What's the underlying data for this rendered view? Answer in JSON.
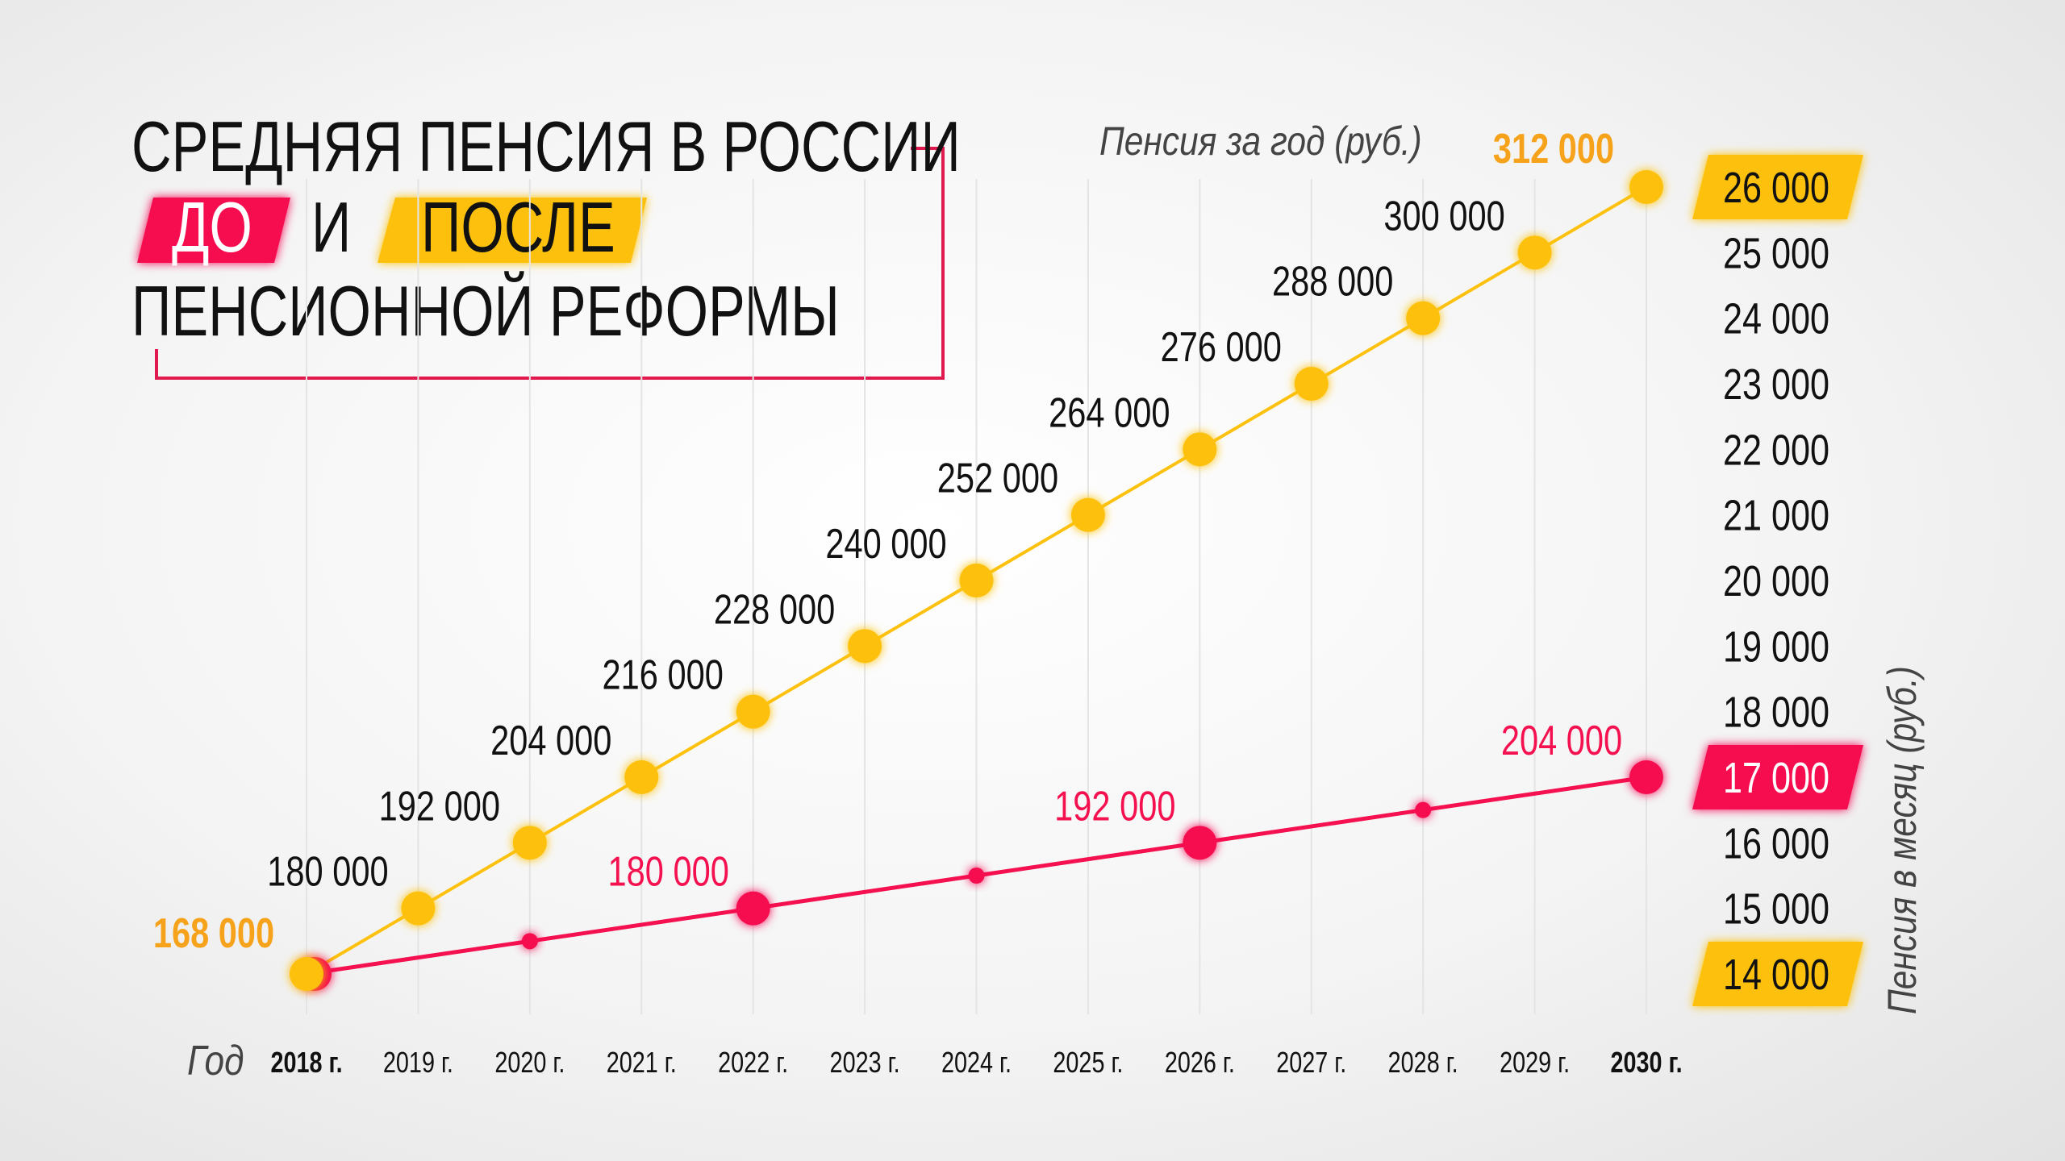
{
  "title": {
    "line1": "СРЕДНЯЯ ПЕНСИЯ В РОССИИ",
    "before": "ДО",
    "and": "И",
    "after": "ПОСЛЕ",
    "line3": "ПЕНСИОННОЙ РЕФОРМЫ"
  },
  "colors": {
    "before": "#f5104f",
    "after": "#fdc10e",
    "after_label": "#f7a21b",
    "text": "#111111",
    "frame": "#e0194f"
  },
  "chart_data": {
    "type": "line",
    "xlabel": "Год",
    "ylabel_top": "Пенсия за год (руб.)",
    "ylabel_right": "Пенсия в месяц (руб.)",
    "categories": [
      "2018 г.",
      "2019 г.",
      "2020 г.",
      "2021 г.",
      "2022 г.",
      "2023 г.",
      "2024 г.",
      "2025 г.",
      "2026 г.",
      "2027 г.",
      "2028 г.",
      "2029 г.",
      "2030 г."
    ],
    "y_ticks": [
      "14 000",
      "15 000",
      "16 000",
      "17 000",
      "18 000",
      "19 000",
      "20 000",
      "21 000",
      "22 000",
      "23 000",
      "24 000",
      "25 000",
      "26 000"
    ],
    "ylim": [
      14000,
      26000
    ],
    "grid": "vertical",
    "series": [
      {
        "key": "after",
        "color": "#fdc10e",
        "monthly": [
          14000,
          15000,
          16000,
          17000,
          18000,
          19000,
          20000,
          21000,
          22000,
          23000,
          24000,
          25000,
          26000
        ],
        "labels": [
          "168 000",
          "180 000",
          "192 000",
          "204 000",
          "216 000",
          "228 000",
          "240 000",
          "252 000",
          "264 000",
          "276 000",
          "288 000",
          "300 000",
          "312 000"
        ]
      },
      {
        "key": "before",
        "color": "#f5104f",
        "years": [
          "2018 г.",
          "2020 г.",
          "2022 г.",
          "2024 г.",
          "2026 г.",
          "2028 г.",
          "2030 г."
        ],
        "monthly": [
          14000,
          14500,
          15000,
          15500,
          16000,
          16500,
          17000
        ],
        "labels": [
          "",
          "",
          "180 000",
          "",
          "192 000",
          "",
          "204 000"
        ]
      }
    ]
  }
}
